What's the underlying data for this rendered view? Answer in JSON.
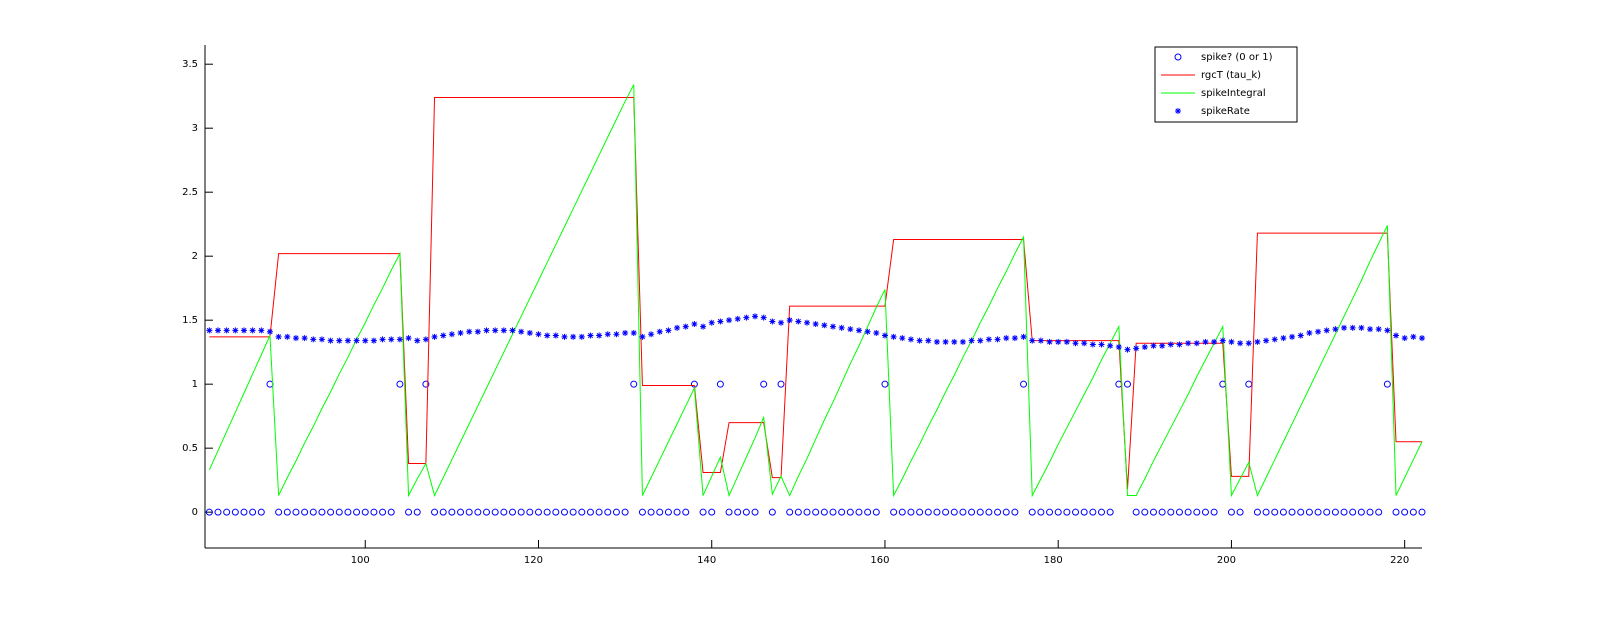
{
  "chart_data": {
    "type": "line",
    "x": [
      82,
      83,
      84,
      85,
      86,
      87,
      88,
      89,
      90,
      91,
      92,
      93,
      94,
      95,
      96,
      97,
      98,
      99,
      100,
      101,
      102,
      103,
      104,
      105,
      106,
      107,
      108,
      109,
      110,
      111,
      112,
      113,
      114,
      115,
      116,
      117,
      118,
      119,
      120,
      121,
      122,
      123,
      124,
      125,
      126,
      127,
      128,
      129,
      130,
      131,
      132,
      133,
      134,
      135,
      136,
      137,
      138,
      139,
      140,
      141,
      142,
      143,
      144,
      145,
      146,
      147,
      148,
      149,
      150,
      151,
      152,
      153,
      154,
      155,
      156,
      157,
      158,
      159,
      160,
      161,
      162,
      163,
      164,
      165,
      166,
      167,
      168,
      169,
      170,
      171,
      172,
      173,
      174,
      175,
      176,
      177,
      178,
      179,
      180,
      181,
      182,
      183,
      184,
      185,
      186,
      187,
      188,
      189,
      190,
      191,
      192,
      193,
      194,
      195,
      196,
      197,
      198,
      199,
      200,
      201,
      202,
      203,
      204,
      205,
      206,
      207,
      208,
      209,
      210,
      211,
      212,
      213,
      214,
      215,
      216,
      217,
      218,
      219,
      220,
      221,
      222
    ],
    "series": [
      {
        "name": "spike? (0 or 1)",
        "color": "#0000ff",
        "marker": "o",
        "linestyle": "none",
        "values": [
          0,
          0,
          0,
          0,
          0,
          0,
          0,
          1,
          0,
          0,
          0,
          0,
          0,
          0,
          0,
          0,
          0,
          0,
          0,
          0,
          0,
          0,
          1,
          0,
          0,
          1,
          0,
          0,
          0,
          0,
          0,
          0,
          0,
          0,
          0,
          0,
          0,
          0,
          0,
          0,
          0,
          0,
          0,
          0,
          0,
          0,
          0,
          0,
          0,
          1,
          0,
          0,
          0,
          0,
          0,
          0,
          1,
          0,
          0,
          1,
          0,
          0,
          0,
          0,
          1,
          0,
          1,
          0,
          0,
          0,
          0,
          0,
          0,
          0,
          0,
          0,
          0,
          0,
          1,
          0,
          0,
          0,
          0,
          0,
          0,
          0,
          0,
          0,
          0,
          0,
          0,
          0,
          0,
          0,
          1,
          0,
          0,
          0,
          0,
          0,
          0,
          0,
          0,
          0,
          0,
          1,
          1,
          0,
          0,
          0,
          0,
          0,
          0,
          0,
          0,
          0,
          0,
          1,
          0,
          0,
          1,
          0,
          0,
          0,
          0,
          0,
          0,
          0,
          0,
          0,
          0,
          0,
          0,
          0,
          0,
          0,
          1,
          0,
          0,
          0,
          0
        ]
      },
      {
        "name": "rgcT (tau_k)",
        "color": "#ff0000",
        "marker": "none",
        "linestyle": "solid",
        "values": [
          1.37,
          1.37,
          1.37,
          1.37,
          1.37,
          1.37,
          1.37,
          1.37,
          2.02,
          2.02,
          2.02,
          2.02,
          2.02,
          2.02,
          2.02,
          2.02,
          2.02,
          2.02,
          2.02,
          2.02,
          2.02,
          2.02,
          2.02,
          0.38,
          0.38,
          0.38,
          3.24,
          3.24,
          3.24,
          3.24,
          3.24,
          3.24,
          3.24,
          3.24,
          3.24,
          3.24,
          3.24,
          3.24,
          3.24,
          3.24,
          3.24,
          3.24,
          3.24,
          3.24,
          3.24,
          3.24,
          3.24,
          3.24,
          3.24,
          3.24,
          0.99,
          0.99,
          0.99,
          0.99,
          0.99,
          0.99,
          0.99,
          0.31,
          0.31,
          0.31,
          0.7,
          0.7,
          0.7,
          0.7,
          0.7,
          0.27,
          0.27,
          1.61,
          1.61,
          1.61,
          1.61,
          1.61,
          1.61,
          1.61,
          1.61,
          1.61,
          1.61,
          1.61,
          1.61,
          2.13,
          2.13,
          2.13,
          2.13,
          2.13,
          2.13,
          2.13,
          2.13,
          2.13,
          2.13,
          2.13,
          2.13,
          2.13,
          2.13,
          2.13,
          2.13,
          1.34,
          1.34,
          1.34,
          1.34,
          1.34,
          1.34,
          1.34,
          1.34,
          1.34,
          1.34,
          1.34,
          0.18,
          1.32,
          1.32,
          1.32,
          1.32,
          1.32,
          1.32,
          1.32,
          1.32,
          1.32,
          1.32,
          1.32,
          0.28,
          0.28,
          0.28,
          2.18,
          2.18,
          2.18,
          2.18,
          2.18,
          2.18,
          2.18,
          2.18,
          2.18,
          2.18,
          2.18,
          2.18,
          2.18,
          2.18,
          2.18,
          2.18,
          0.55,
          0.55,
          0.55,
          0.55
        ]
      },
      {
        "name": "spikeIntegral",
        "color": "#00ff00",
        "marker": "none",
        "linestyle": "solid",
        "values": [
          0.33,
          0.48,
          0.63,
          0.78,
          0.93,
          1.08,
          1.23,
          1.38,
          0.13,
          0.27,
          0.4,
          0.54,
          0.67,
          0.81,
          0.94,
          1.08,
          1.21,
          1.35,
          1.48,
          1.62,
          1.75,
          1.89,
          2.02,
          0.13,
          0.26,
          0.38,
          0.13,
          0.27,
          0.41,
          0.55,
          0.69,
          0.83,
          0.97,
          1.11,
          1.25,
          1.39,
          1.53,
          1.67,
          1.81,
          1.95,
          2.09,
          2.23,
          2.37,
          2.51,
          2.65,
          2.79,
          2.93,
          3.07,
          3.21,
          3.34,
          0.13,
          0.27,
          0.41,
          0.55,
          0.69,
          0.83,
          0.97,
          0.13,
          0.28,
          0.43,
          0.13,
          0.28,
          0.43,
          0.58,
          0.74,
          0.14,
          0.28,
          0.13,
          0.28,
          0.42,
          0.57,
          0.72,
          0.86,
          1.01,
          1.16,
          1.3,
          1.45,
          1.6,
          1.74,
          0.13,
          0.26,
          0.4,
          0.53,
          0.67,
          0.8,
          0.94,
          1.07,
          1.21,
          1.34,
          1.48,
          1.61,
          1.75,
          1.88,
          2.02,
          2.15,
          0.13,
          0.26,
          0.39,
          0.53,
          0.66,
          0.79,
          0.92,
          1.05,
          1.19,
          1.32,
          1.45,
          0.13,
          0.13,
          0.26,
          0.4,
          0.53,
          0.66,
          0.79,
          0.92,
          1.06,
          1.19,
          1.32,
          1.45,
          0.13,
          0.26,
          0.39,
          0.13,
          0.27,
          0.41,
          0.55,
          0.69,
          0.83,
          0.97,
          1.11,
          1.25,
          1.39,
          1.53,
          1.67,
          1.81,
          1.96,
          2.1,
          2.24,
          0.13,
          0.27,
          0.41,
          0.55
        ]
      },
      {
        "name": "spikeRate",
        "color": "#0000ff",
        "marker": "*",
        "linestyle": "none",
        "values": [
          1.42,
          1.42,
          1.42,
          1.42,
          1.42,
          1.42,
          1.42,
          1.41,
          1.37,
          1.37,
          1.36,
          1.36,
          1.35,
          1.35,
          1.34,
          1.34,
          1.34,
          1.34,
          1.34,
          1.34,
          1.35,
          1.35,
          1.35,
          1.36,
          1.34,
          1.35,
          1.37,
          1.38,
          1.39,
          1.4,
          1.41,
          1.41,
          1.42,
          1.42,
          1.42,
          1.42,
          1.41,
          1.4,
          1.39,
          1.38,
          1.38,
          1.37,
          1.37,
          1.37,
          1.38,
          1.38,
          1.39,
          1.39,
          1.4,
          1.4,
          1.37,
          1.39,
          1.41,
          1.42,
          1.44,
          1.45,
          1.47,
          1.45,
          1.48,
          1.49,
          1.5,
          1.51,
          1.52,
          1.53,
          1.52,
          1.49,
          1.48,
          1.5,
          1.49,
          1.48,
          1.47,
          1.46,
          1.45,
          1.44,
          1.43,
          1.42,
          1.41,
          1.4,
          1.38,
          1.37,
          1.36,
          1.35,
          1.34,
          1.34,
          1.33,
          1.33,
          1.33,
          1.33,
          1.34,
          1.34,
          1.35,
          1.35,
          1.36,
          1.36,
          1.37,
          1.34,
          1.34,
          1.33,
          1.33,
          1.33,
          1.32,
          1.32,
          1.31,
          1.31,
          1.3,
          1.29,
          1.27,
          1.28,
          1.29,
          1.3,
          1.3,
          1.31,
          1.31,
          1.32,
          1.32,
          1.33,
          1.33,
          1.34,
          1.33,
          1.32,
          1.32,
          1.33,
          1.34,
          1.35,
          1.36,
          1.37,
          1.38,
          1.4,
          1.41,
          1.42,
          1.43,
          1.44,
          1.44,
          1.44,
          1.43,
          1.43,
          1.42,
          1.38,
          1.36,
          1.37,
          1.36
        ]
      }
    ],
    "xlim": [
      81.5,
      222
    ],
    "xticks": [
      100,
      120,
      140,
      160,
      180,
      200,
      220
    ],
    "ylim": [
      -0.28,
      3.65
    ],
    "yticks": [
      0,
      0.5,
      1,
      1.5,
      2,
      2.5,
      3,
      3.5
    ],
    "grid": false,
    "legend": "upper right"
  }
}
